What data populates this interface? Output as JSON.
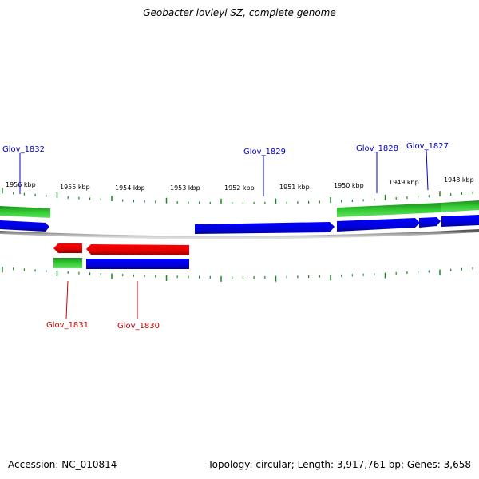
{
  "title": "Geobacter lovleyi SZ, complete genome",
  "footer": {
    "accession": "Accession: NC_010814",
    "summary": "Topology: circular; Length: 3,917,761 bp; Genes: 3,658"
  },
  "scale_labels": [
    "1956 kbp",
    "1955 kbp",
    "1954 kbp",
    "1953 kbp",
    "1952 kbp",
    "1951 kbp",
    "1950 kbp",
    "1949 kbp",
    "1948 kbp"
  ],
  "genes": [
    {
      "label": "Glov_1832",
      "strand": "forward"
    },
    {
      "label": "Glov_1829",
      "strand": "forward"
    },
    {
      "label": "Glov_1828",
      "strand": "forward"
    },
    {
      "label": "Glov_1827",
      "strand": "forward"
    },
    {
      "label": "Glov_1831",
      "strand": "reverse"
    },
    {
      "label": "Glov_1830",
      "strand": "reverse"
    }
  ],
  "colors": {
    "forward_label": "#0000cc",
    "reverse_label": "#cc0000",
    "cds_forward": "#0000ee",
    "cds_reverse": "#ee0000",
    "gene_feature": "#22aa22",
    "tick": "#1a8a1a",
    "backbone": "#888888"
  }
}
